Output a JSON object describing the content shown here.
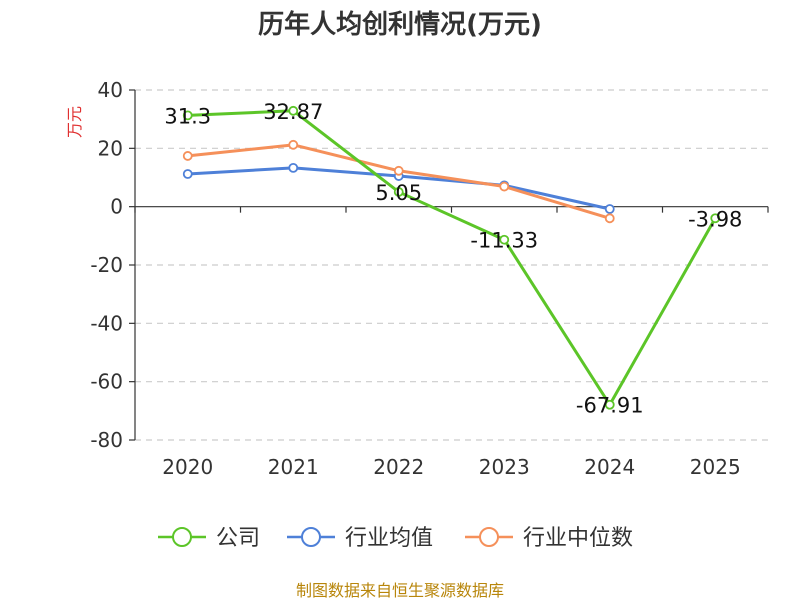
{
  "chart_data": {
    "type": "line",
    "title": "历年人均创利情况(万元)",
    "ylabel": "万元",
    "xlabel": "",
    "categories": [
      "2020",
      "2021",
      "2022",
      "2023",
      "2024",
      "2025"
    ],
    "ylim": [
      -80,
      40
    ],
    "yticks": [
      40,
      20,
      0,
      -20,
      -40,
      -60,
      -80
    ],
    "grid": true,
    "legend_position": "bottom",
    "series": [
      {
        "name": "公司",
        "color": "#5cc528",
        "values": [
          31.3,
          32.87,
          5.05,
          -11.33,
          -67.91,
          -3.98
        ],
        "labels": [
          "31.3",
          "32.87",
          "5.05",
          "-11.33",
          "-67.91",
          "-3.98"
        ]
      },
      {
        "name": "行业均值",
        "color": "#4e80d8",
        "values": [
          11.2,
          13.3,
          10.5,
          7.3,
          -0.8,
          null
        ]
      },
      {
        "name": "行业中位数",
        "color": "#f5905a",
        "values": [
          17.4,
          21.2,
          12.3,
          6.9,
          -4.0,
          null
        ]
      }
    ]
  },
  "source": "制图数据来自恒生聚源数据库"
}
